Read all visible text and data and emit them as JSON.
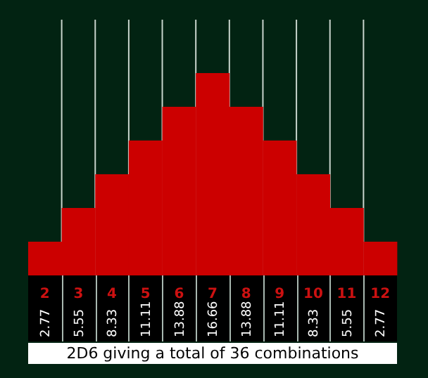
{
  "chart_data": {
    "type": "bar",
    "xlabel": "2D6 giving a total of 36 combinations",
    "categories": [
      "2",
      "3",
      "4",
      "5",
      "6",
      "7",
      "8",
      "9",
      "10",
      "11",
      "12"
    ],
    "values": [
      2.77,
      5.55,
      8.33,
      11.11,
      13.88,
      16.66,
      13.88,
      11.11,
      8.33,
      5.55,
      2.77
    ],
    "color": "#cc0000",
    "data_labels": true,
    "grid": "x"
  }
}
